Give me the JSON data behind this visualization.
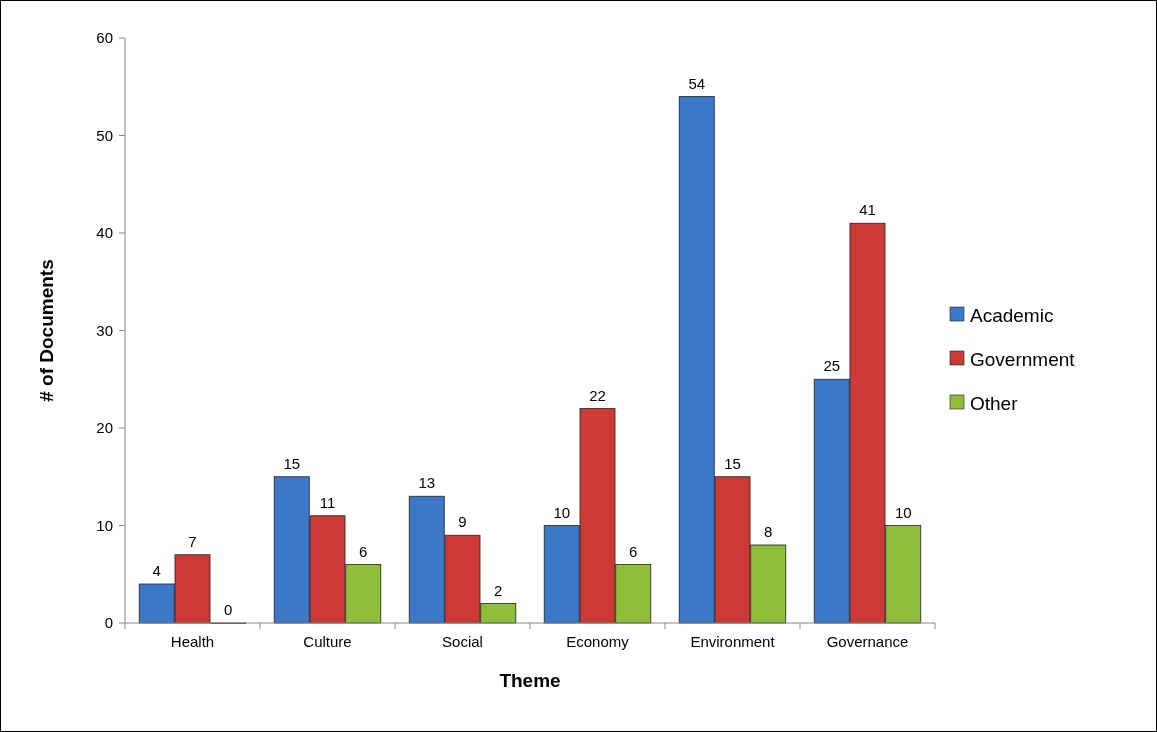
{
  "chart_data": {
    "type": "bar",
    "xlabel": "Theme",
    "ylabel": "# of Documents",
    "categories": [
      "Health",
      "Culture",
      "Social",
      "Economy",
      "Environment",
      "Governance"
    ],
    "series": [
      {
        "name": "Academic",
        "color": "#3b78c8",
        "values": [
          4,
          15,
          13,
          10,
          54,
          25
        ]
      },
      {
        "name": "Government",
        "color": "#cc3a36",
        "values": [
          7,
          11,
          9,
          22,
          15,
          41
        ]
      },
      {
        "name": "Other",
        "color": "#8fbf3a",
        "values": [
          0,
          6,
          2,
          6,
          8,
          10
        ]
      }
    ],
    "ylim": [
      0,
      60
    ],
    "yticks": [
      0,
      10,
      20,
      30,
      40,
      50,
      60
    ],
    "data_labels": true,
    "legend": "right",
    "grid": false
  }
}
